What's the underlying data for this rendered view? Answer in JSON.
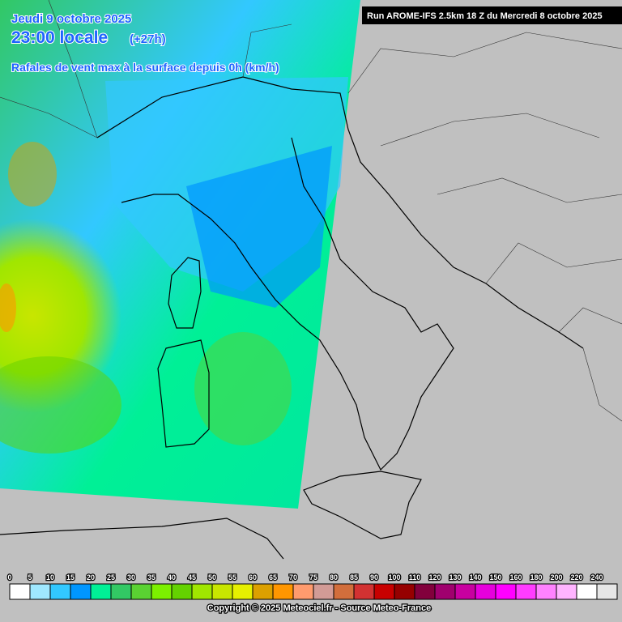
{
  "header": {
    "date": "Jeudi 9 octobre 2025",
    "time": "23:00 locale",
    "offset": "(+27h)",
    "subtitle": "Rafales de vent max à la surface depuis 0h (km/h)"
  },
  "run_label": "Run AROME-IFS 2.5km 18 Z du Mercredi 8 octobre 2025",
  "copyright": "Copyright © 2025 Meteociel.fr - Source Meteo-France",
  "legend": {
    "values": [
      0,
      5,
      10,
      15,
      20,
      25,
      30,
      35,
      40,
      45,
      50,
      55,
      60,
      65,
      70,
      75,
      80,
      85,
      90,
      100,
      110,
      120,
      130,
      140,
      150,
      160,
      180,
      200,
      220,
      240
    ],
    "colors": [
      "#ffffff",
      "#9fe8ff",
      "#32c8ff",
      "#0096ff",
      "#00f096",
      "#32c864",
      "#5ad232",
      "#7cf000",
      "#64d200",
      "#a0e600",
      "#c8e600",
      "#e6f000",
      "#dca000",
      "#ff9600",
      "#ff9b6e",
      "#d29b96",
      "#d26e3c",
      "#d23232",
      "#c80000",
      "#960000",
      "#82003c",
      "#a0006e",
      "#c800a0",
      "#e600dc",
      "#ff00ff",
      "#ff3cff",
      "#ff82ff",
      "#ffb4ff",
      "#ffffff",
      "#e6e6e6"
    ]
  }
}
